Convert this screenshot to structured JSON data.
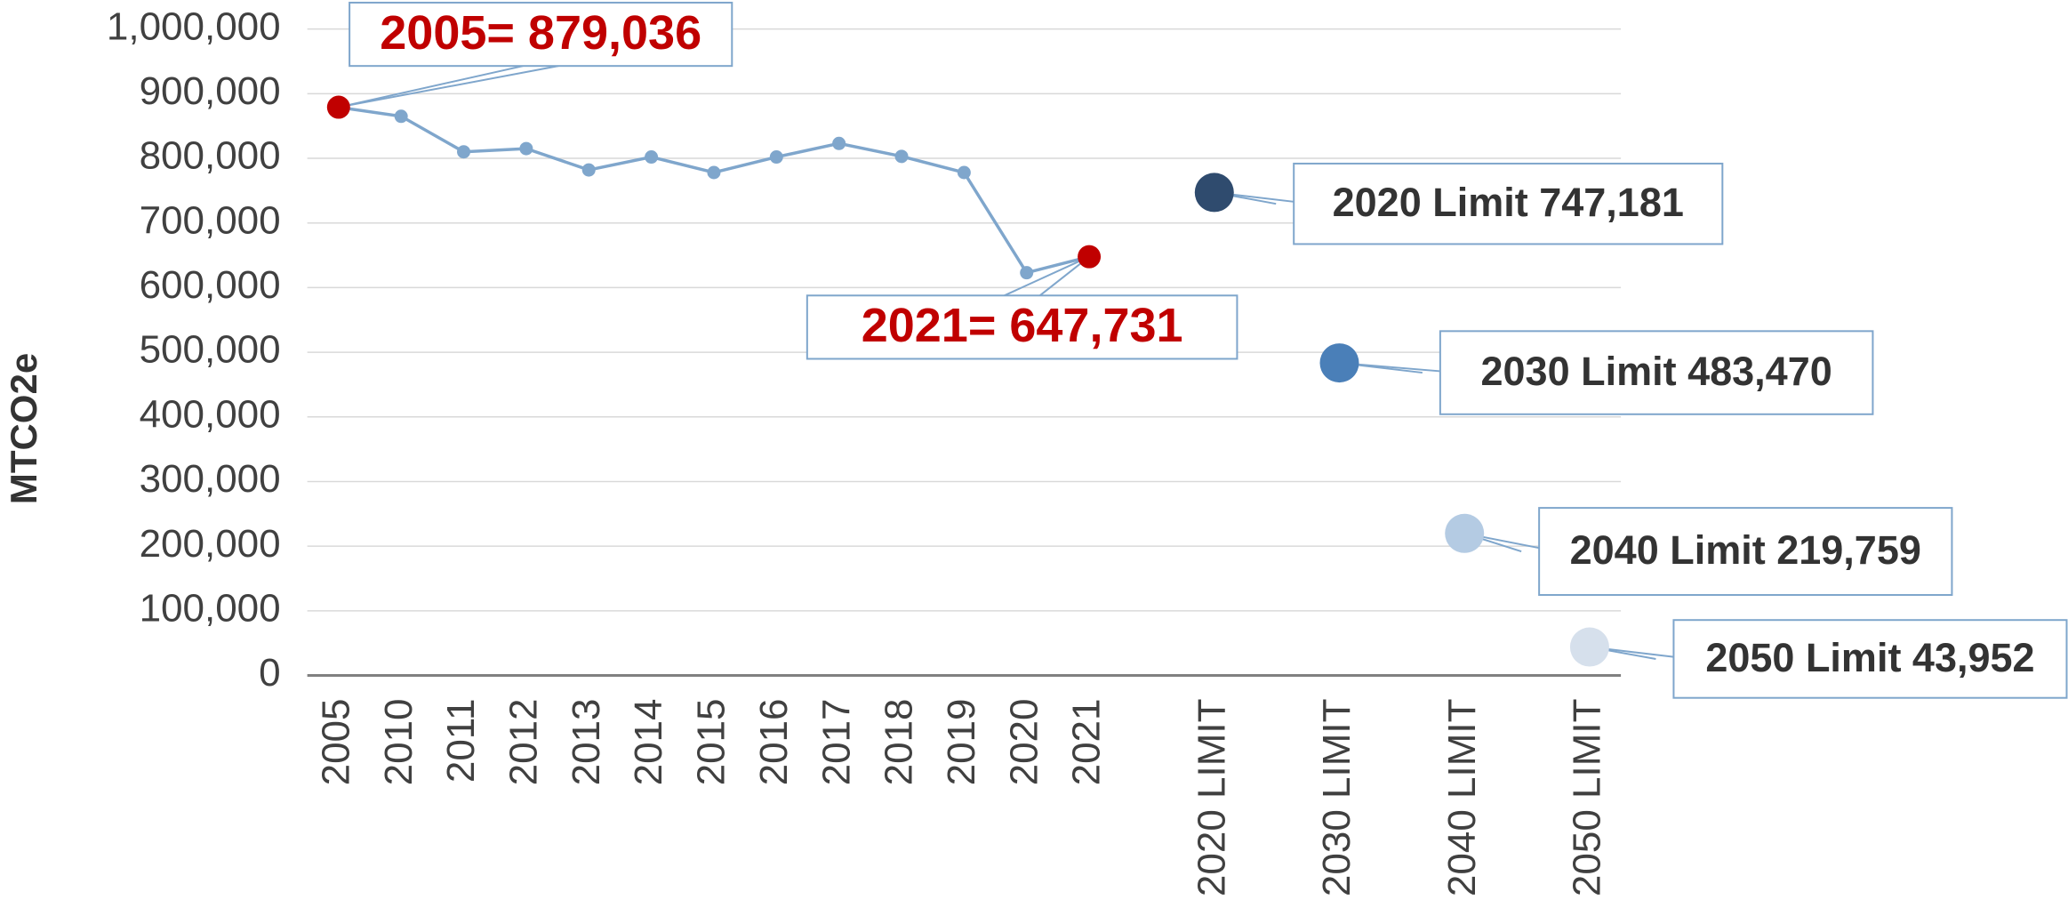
{
  "chart_data": {
    "type": "line",
    "y_label": "MTCO2e",
    "categories": [
      "2005",
      "2010",
      "2011",
      "2012",
      "2013",
      "2014",
      "2015",
      "2016",
      "2017",
      "2018",
      "2019",
      "2020",
      "2021",
      null,
      "2020 LIMIT",
      null,
      "2030 LIMIT",
      null,
      "2040 LIMIT",
      null,
      "2050 LIMIT"
    ],
    "series": [
      {
        "color": "#7fa6cc",
        "highlight_color": "#c00000",
        "label_color": "#c00000",
        "values": [
          879036,
          865000,
          810000,
          815000,
          782000,
          802000,
          778000,
          802000,
          823000,
          803000,
          778000,
          623000,
          647731,
          null,
          null,
          null,
          null,
          null,
          null,
          null,
          null
        ],
        "value_labels": [
          "2005= 879,036",
          null,
          null,
          null,
          null,
          null,
          null,
          null,
          null,
          null,
          null,
          null,
          "2021= 647,731",
          null,
          null,
          null,
          null,
          null,
          null,
          null,
          null
        ]
      },
      {
        "label_color": "#333333",
        "values": [
          null,
          null,
          null,
          null,
          null,
          null,
          null,
          null,
          null,
          null,
          null,
          null,
          null,
          null,
          747181,
          null,
          483470,
          null,
          219759,
          null,
          43952
        ],
        "point_colors": [
          null,
          null,
          null,
          null,
          null,
          null,
          null,
          null,
          null,
          null,
          null,
          null,
          null,
          null,
          "#2f4b6e",
          null,
          "#4a7fb8",
          null,
          "#b4cbe3",
          null,
          "#d6e0ec"
        ],
        "value_labels": [
          null,
          null,
          null,
          null,
          null,
          null,
          null,
          null,
          null,
          null,
          null,
          null,
          null,
          null,
          "2020 Limit 747,181",
          null,
          "2030 Limit 483,470",
          null,
          "2040 Limit 219,759",
          null,
          "2050 Limit 43,952"
        ]
      }
    ],
    "ylim": [
      0,
      1000000
    ],
    "yticks": [
      0,
      {
        "value": 100000,
        "label": "100,000"
      },
      {
        "value": 200000,
        "label": "200,000"
      },
      {
        "value": 300000,
        "label": "300,000"
      },
      {
        "value": 400000,
        "label": "400,000"
      },
      {
        "value": 500000,
        "label": "500,000"
      },
      {
        "value": 600000,
        "label": "600,000"
      },
      {
        "value": 700000,
        "label": "700,000"
      },
      {
        "value": 800000,
        "label": "800,000"
      },
      {
        "value": 900000,
        "label": "900,000"
      },
      {
        "value": 1000000,
        "label": "1,000,000"
      }
    ],
    "grid": true
  }
}
